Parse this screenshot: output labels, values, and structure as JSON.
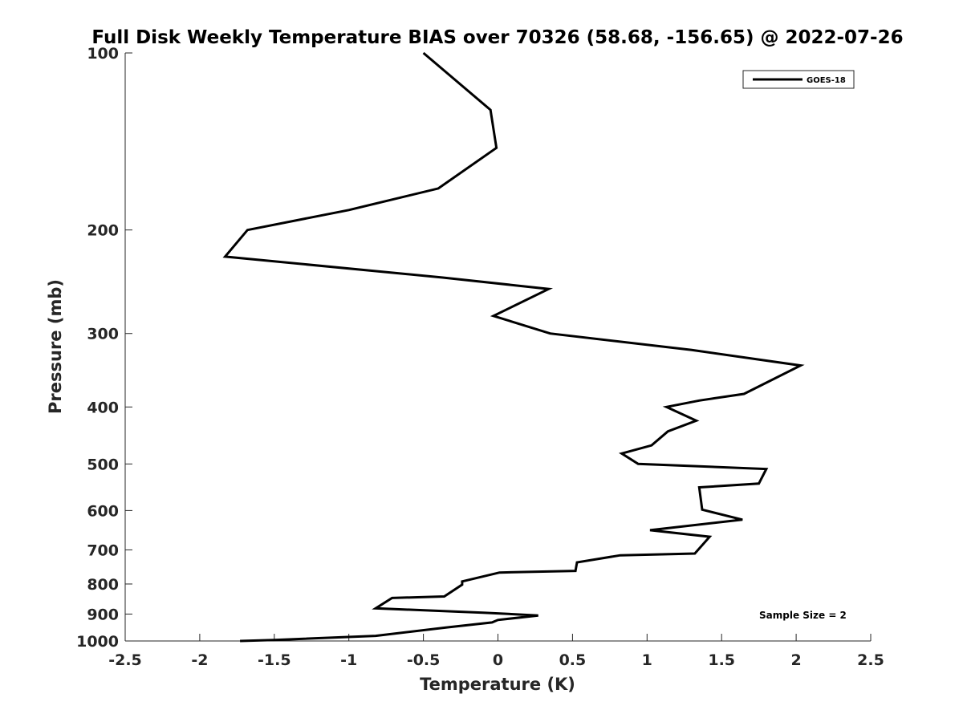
{
  "chart_data": {
    "type": "line",
    "title": "Full Disk Weekly Temperature BIAS over 70326 (58.68, -156.65) @ 2022-07-26",
    "xlabel": "Temperature (K)",
    "ylabel": "Pressure (mb)",
    "xlim": [
      -2.5,
      2.5
    ],
    "ylim": [
      100,
      1000
    ],
    "y_scale": "log",
    "y_reversed": true,
    "grid": false,
    "x_ticks": [
      -2.5,
      -2,
      -1.5,
      -1,
      -0.5,
      0,
      0.5,
      1,
      1.5,
      2,
      2.5
    ],
    "x_tick_labels": [
      "-2.5",
      "-2",
      "-1.5",
      "-1",
      "-0.5",
      "0",
      "0.5",
      "1",
      "1.5",
      "2",
      "2.5"
    ],
    "y_ticks": [
      100,
      200,
      300,
      400,
      500,
      600,
      700,
      800,
      900,
      1000
    ],
    "y_tick_labels": [
      "100",
      "200",
      "300",
      "400",
      "500",
      "600",
      "700",
      "800",
      "900",
      "1000"
    ],
    "legend": {
      "position": "top-right",
      "entries": [
        "GOES-18"
      ]
    },
    "annotation": "Sample Size = 2",
    "series": [
      {
        "name": "GOES-18",
        "color": "#000000",
        "x": [
          -0.5,
          -0.05,
          -0.01,
          -0.4,
          -1.0,
          -1.68,
          -1.83,
          -0.37,
          0.34,
          -0.03,
          0.35,
          1.3,
          2.03,
          1.65,
          1.35,
          1.13,
          1.33,
          1.14,
          1.03,
          0.83,
          0.94,
          1.8,
          1.75,
          1.35,
          1.37,
          1.64,
          1.02,
          1.42,
          1.32,
          0.82,
          0.53,
          0.52,
          0.01,
          -0.24,
          -0.24,
          -0.36,
          -0.71,
          -0.82,
          -0.1,
          0.27,
          0.0,
          -0.04,
          -0.35,
          -0.82,
          -1.5,
          -1.73
        ],
        "y": [
          100,
          125,
          145,
          170,
          185,
          200,
          222,
          241,
          252,
          280,
          300,
          320,
          340,
          380,
          390,
          400,
          422,
          440,
          465,
          480,
          500,
          510,
          540,
          548,
          598,
          622,
          648,
          665,
          710,
          715,
          735,
          760,
          765,
          792,
          802,
          840,
          845,
          880,
          895,
          905,
          921,
          930,
          949,
          980,
          996,
          1000
        ]
      }
    ]
  }
}
